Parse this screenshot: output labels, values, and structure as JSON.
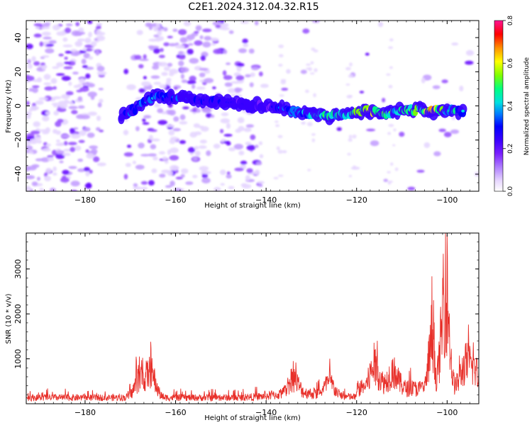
{
  "figure": {
    "title": "C2E1.2024.312.04.32.R15"
  },
  "chart_data": [
    {
      "type": "heatmap",
      "title": "C2E1.2024.312.04.32.R15",
      "xlabel": "Height of straight line (km)",
      "ylabel": "Frequency (Hz)",
      "xlim": [
        -193,
        -93
      ],
      "ylim": [
        -50,
        50
      ],
      "x_ticks": [
        -180,
        -160,
        -140,
        -120,
        -100
      ],
      "y_ticks": [
        -40,
        -20,
        0,
        20,
        40
      ],
      "colorbar": {
        "label": "Normalized spectral amplitude",
        "range": [
          0,
          0.8
        ],
        "ticks": [
          0.0,
          0.2,
          0.4,
          0.6,
          0.8
        ],
        "colormap": [
          "#ffffff",
          "#e8d8ff",
          "#b080ff",
          "#7a1fff",
          "#3a00ff",
          "#0000ff",
          "#0078ff",
          "#00e0e0",
          "#00ff80",
          "#80ff00",
          "#ffff00",
          "#ff9000",
          "#ff0000",
          "#ff1493"
        ]
      },
      "echo_band": [
        {
          "x": -172,
          "freq": -6,
          "amp": 0.3
        },
        {
          "x": -170,
          "freq": -3,
          "amp": 0.36
        },
        {
          "x": -168,
          "freq": 0,
          "amp": 0.4
        },
        {
          "x": -166,
          "freq": 3,
          "amp": 0.42
        },
        {
          "x": -164,
          "freq": 6,
          "amp": 0.38
        },
        {
          "x": -140,
          "freq": 0,
          "amp": 0.25
        },
        {
          "x": -137,
          "freq": -1,
          "amp": 0.35
        },
        {
          "x": -134,
          "freq": -3,
          "amp": 0.4
        },
        {
          "x": -130,
          "freq": -5,
          "amp": 0.45
        },
        {
          "x": -126,
          "freq": -6,
          "amp": 0.55
        },
        {
          "x": -122,
          "freq": -5,
          "amp": 0.48
        },
        {
          "x": -118,
          "freq": -3,
          "amp": 0.65
        },
        {
          "x": -114,
          "freq": -4,
          "amp": 0.55
        },
        {
          "x": -110,
          "freq": -3,
          "amp": 0.5
        },
        {
          "x": -106,
          "freq": -2,
          "amp": 0.6
        },
        {
          "x": -104,
          "freq": -3,
          "amp": 0.7
        },
        {
          "x": -100,
          "freq": -3,
          "amp": 0.5
        },
        {
          "x": -96,
          "freq": -3,
          "amp": 0.45
        }
      ]
    },
    {
      "type": "line",
      "xlabel": "Height of straight line (km)",
      "ylabel": "SNR (10 * v/v)",
      "xlim": [
        -193,
        -93
      ],
      "ylim": [
        0,
        3800
      ],
      "x_ticks": [
        -180,
        -160,
        -140,
        -120,
        -100
      ],
      "y_ticks": [
        1000,
        2000,
        3000
      ],
      "line_color": "#e8302a",
      "baseline_level": 170,
      "peaks": [
        {
          "x": -165.5,
          "y": 1380
        },
        {
          "x": -168,
          "y": 1050
        },
        {
          "x": -134,
          "y": 950
        },
        {
          "x": -126,
          "y": 800
        },
        {
          "x": -116,
          "y": 1200
        },
        {
          "x": -112,
          "y": 1000
        },
        {
          "x": -103.5,
          "y": 2200
        },
        {
          "x": -101,
          "y": 2800
        },
        {
          "x": -100,
          "y": 3750
        },
        {
          "x": -96,
          "y": 1250
        },
        {
          "x": -94,
          "y": 1000
        }
      ]
    }
  ]
}
